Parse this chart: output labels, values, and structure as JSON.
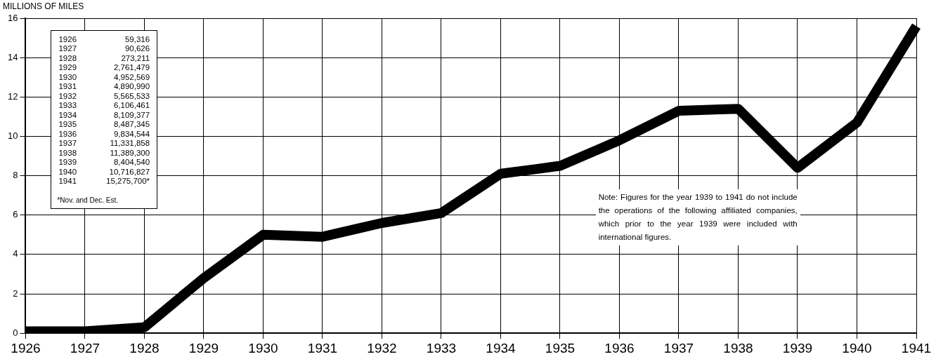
{
  "chart_data": {
    "type": "line",
    "ylabel": "MILLIONS OF MILES",
    "categories": [
      "1926",
      "1927",
      "1928",
      "1929",
      "1930",
      "1931",
      "1932",
      "1933",
      "1934",
      "1935",
      "1936",
      "1937",
      "1938",
      "1939",
      "1940",
      "1941"
    ],
    "values": [
      0.1,
      0.1,
      0.3,
      2.8,
      5.0,
      4.9,
      5.6,
      6.1,
      8.1,
      8.5,
      9.8,
      11.3,
      11.4,
      8.4,
      10.7,
      15.6
    ],
    "color": "#000000",
    "marker": "none",
    "ylim": [
      0,
      16
    ],
    "yticks": [
      0,
      2,
      4,
      6,
      8,
      10,
      12,
      14,
      16
    ],
    "grid": true,
    "annotations": [
      "*Nov. and Dec. Est.",
      "Note: Figures for the year 1939 to 1941 do not include the operations of the following affiliated companies, which prior to the year 1939 were included with international figures.",
      "1926 59,316",
      "1927 90,626",
      "1928 273,211",
      "1929 2,761,479",
      "1930 4,952,569",
      "1931 4,890,990",
      "1932 5,565,533",
      "1933 6,106,461",
      "1934 8,109,377",
      "1935 8,487,345",
      "1936 9,834,544",
      "1937 11,331,858",
      "1938 11,389,300",
      "1939 8,404,540",
      "1940 10,716,827",
      "1941 15,275,700*"
    ]
  }
}
